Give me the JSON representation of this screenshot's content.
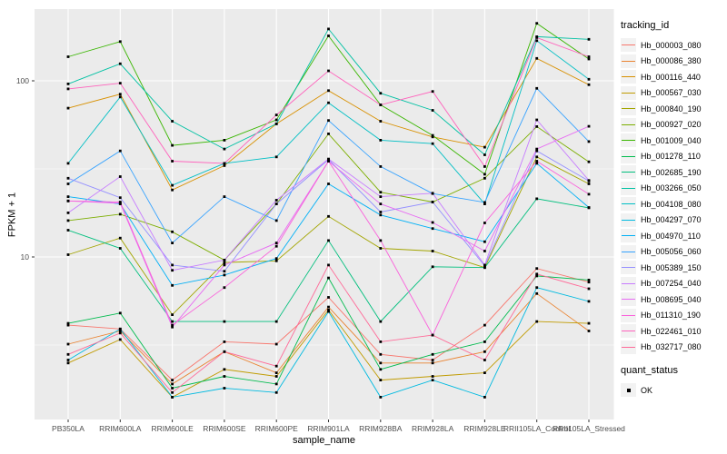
{
  "chart_data": {
    "type": "line",
    "title": "",
    "xlabel": "sample_name",
    "ylabel": "FPKM + 1",
    "y_scale": "log10",
    "y_ticks": [
      10,
      100
    ],
    "y_minor_gridlines": [
      3.1623,
      31.623
    ],
    "ylim": [
      1.2,
      256
    ],
    "grid": true,
    "legend_position": "right",
    "x_categories": [
      "PB350LA",
      "RRIM600LA",
      "RRIM600LE",
      "RRIM600SE",
      "RRIM600PE",
      "RRIM901LA",
      "RRIM928BA",
      "RRIM928LA",
      "RRIM928LE",
      "RRII105LA_Control",
      "RRII105LA_Stressed"
    ],
    "series": [
      {
        "name": "Hb_000003_080",
        "color": "#F8766D",
        "values": [
          4.1,
          3.9,
          2.0,
          3.3,
          3.2,
          5.9,
          2.8,
          2.6,
          4.1,
          8.6,
          7.2
        ]
      },
      {
        "name": "Hb_000086_380",
        "color": "#EA8331",
        "values": [
          3.2,
          3.8,
          1.9,
          2.9,
          2.2,
          5.2,
          2.5,
          2.5,
          2.9,
          6.2,
          3.8
        ]
      },
      {
        "name": "Hb_000116_440",
        "color": "#D89000",
        "values": [
          70,
          84,
          24,
          33,
          57,
          88,
          59,
          48,
          42,
          134,
          95
        ]
      },
      {
        "name": "Hb_000567_030",
        "color": "#C09B00",
        "values": [
          2.5,
          3.4,
          1.6,
          2.3,
          2.1,
          5.0,
          2.0,
          2.1,
          2.2,
          4.3,
          4.2
        ]
      },
      {
        "name": "Hb_000840_190",
        "color": "#A3A500",
        "values": [
          10.3,
          12.8,
          4.7,
          9.3,
          9.5,
          17,
          11.2,
          10.8,
          8.7,
          37,
          26
        ]
      },
      {
        "name": "Hb_000927_020",
        "color": "#7CAE00",
        "values": [
          16.1,
          17.5,
          13.9,
          9.6,
          20,
          50,
          23.3,
          20.5,
          28,
          55,
          34.7
        ]
      },
      {
        "name": "Hb_001009_040",
        "color": "#39B600",
        "values": [
          137,
          167,
          43,
          46,
          60,
          180,
          73,
          49,
          29.5,
          212,
          133
        ]
      },
      {
        "name": "Hb_001278_110",
        "color": "#00BB4E",
        "values": [
          4.2,
          4.8,
          1.8,
          2.1,
          1.9,
          7.6,
          2.3,
          2.8,
          3.3,
          7.8,
          7.4
        ]
      },
      {
        "name": "Hb_002685_190",
        "color": "#00BF7D",
        "values": [
          14.2,
          11.2,
          4.3,
          4.3,
          4.3,
          12.4,
          4.3,
          8.8,
          8.7,
          21.4,
          19
        ]
      },
      {
        "name": "Hb_003266_050",
        "color": "#00C1A3",
        "values": [
          96,
          125,
          59,
          41,
          57,
          197,
          85,
          68,
          38,
          178,
          172
        ]
      },
      {
        "name": "Hb_004108_080",
        "color": "#00BFC4",
        "values": [
          34,
          81,
          25.5,
          34,
          37,
          75,
          46,
          44,
          20,
          169,
          102
        ]
      },
      {
        "name": "Hb_004297_070",
        "color": "#00BAE0",
        "values": [
          2.6,
          3.9,
          1.6,
          1.8,
          1.7,
          4.9,
          1.6,
          2.0,
          1.6,
          6.7,
          5.6
        ]
      },
      {
        "name": "Hb_004970_110",
        "color": "#00B0F6",
        "values": [
          22,
          20,
          6.9,
          7.9,
          9.8,
          26,
          17.3,
          14.5,
          12.2,
          34,
          19.1
        ]
      },
      {
        "name": "Hb_005056_060",
        "color": "#35A2FF",
        "values": [
          26,
          40,
          12,
          22,
          16.1,
          59.5,
          32.6,
          22.9,
          20.4,
          90.6,
          45.2
        ]
      },
      {
        "name": "Hb_005389_150",
        "color": "#9590FF",
        "values": [
          28,
          21.7,
          9.0,
          8.3,
          20,
          35.7,
          18,
          20.5,
          8.9,
          40,
          27
        ]
      },
      {
        "name": "Hb_007254_040",
        "color": "#C77CFF",
        "values": [
          17.8,
          28.6,
          8.4,
          9.6,
          21,
          36,
          22,
          23,
          9.0,
          60,
          27.2
        ]
      },
      {
        "name": "Hb_008695_040",
        "color": "#E76BF3",
        "values": [
          20.8,
          20.2,
          4.0,
          9.0,
          12,
          35,
          20,
          15.7,
          10.8,
          41,
          55.2
        ]
      },
      {
        "name": "Hb_011310_190",
        "color": "#FA62DB",
        "values": [
          20.8,
          20.5,
          4.1,
          6.7,
          11.5,
          35,
          12.4,
          3.6,
          15.6,
          35,
          22.7
        ]
      },
      {
        "name": "Hb_022461_010",
        "color": "#FF62BC",
        "values": [
          90,
          97,
          35,
          34,
          64,
          114,
          73,
          87,
          32.6,
          176,
          137
        ]
      },
      {
        "name": "Hb_032717_080",
        "color": "#FF6A98",
        "values": [
          2.8,
          3.7,
          1.7,
          2.9,
          2.4,
          9.0,
          3.3,
          3.6,
          2.6,
          8.0,
          6.6
        ]
      }
    ],
    "legend": {
      "tracking_title": "tracking_id",
      "quant_title": "quant_status",
      "quant_value": "OK"
    },
    "style": {
      "panel_background": "#EBEBEB",
      "gridline_color": "#FFFFFF",
      "point_color": "#000000",
      "tick_text_color": "#4D4D4D",
      "tick_mark_color": "#333333",
      "legend_key_fill": "#F2F2F2"
    }
  }
}
